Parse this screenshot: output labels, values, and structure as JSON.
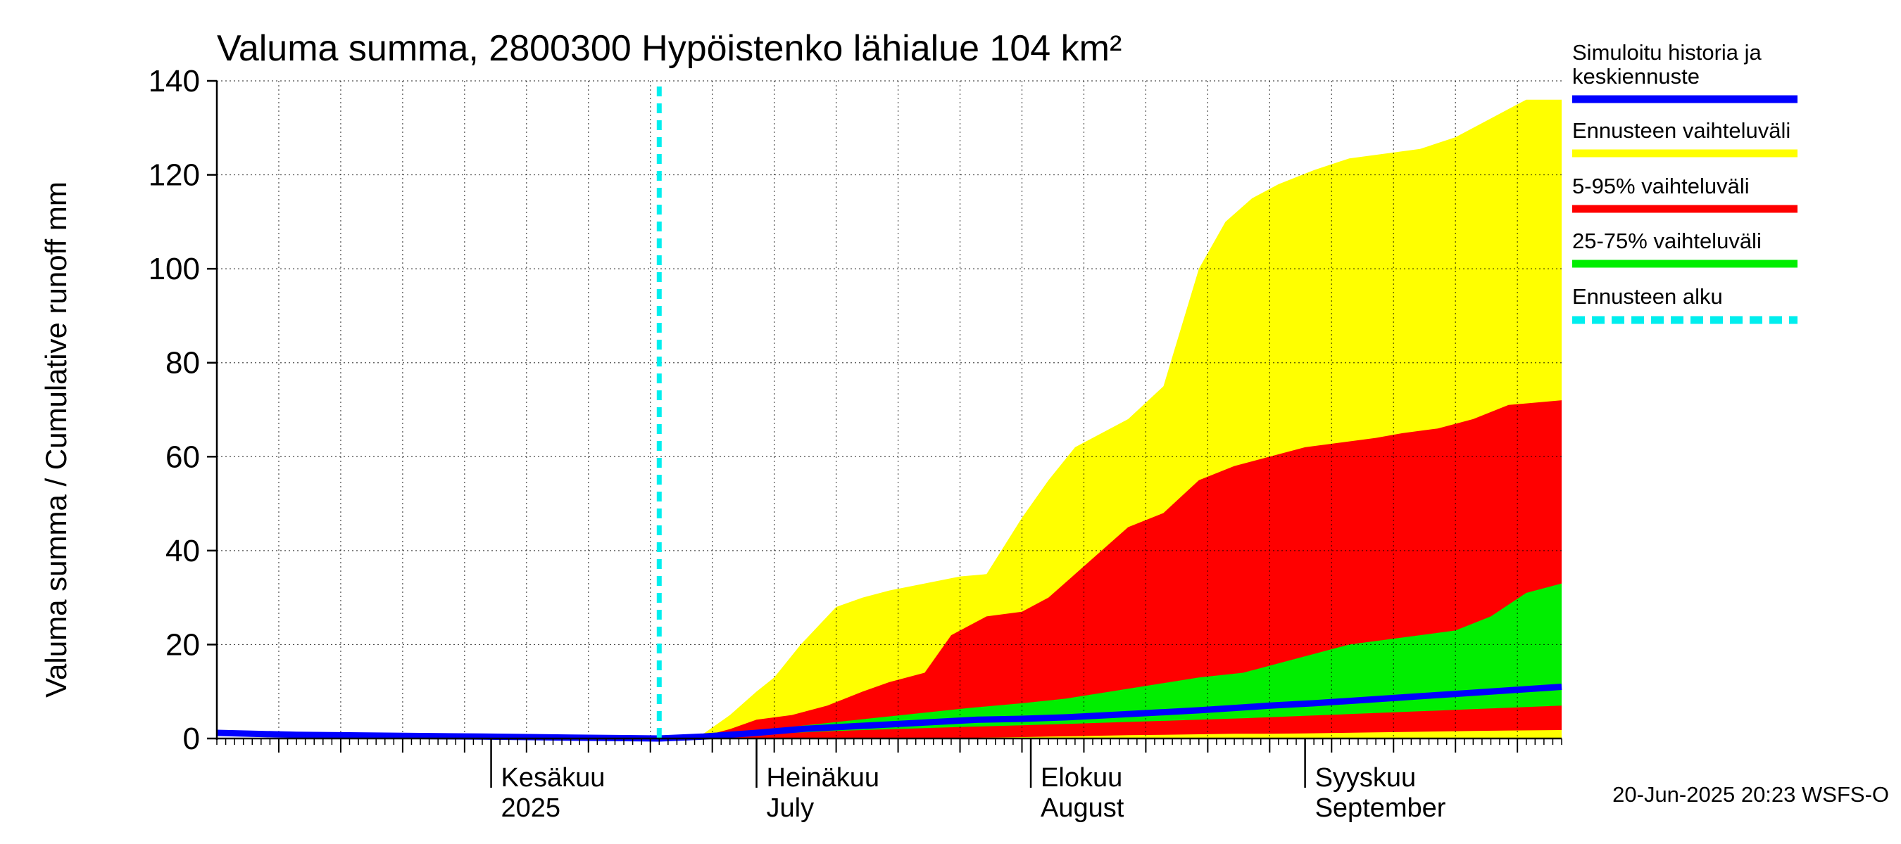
{
  "chart_data": {
    "type": "area",
    "title": "Valuma summa, 2800300 Hypöistenko lähialue 104 km²",
    "ylabel": "Valuma summa / Cumulative runoff    mm",
    "ylim": [
      0,
      140
    ],
    "yticks": [
      "0",
      "20",
      "40",
      "60",
      "80",
      "100",
      "120",
      "140"
    ],
    "xlim": [
      "2025-05-01",
      "2025-09-30"
    ],
    "month_labels": [
      {
        "line1": "Kesäkuu",
        "line2": "2025",
        "date": "2025-06-01"
      },
      {
        "line1": "Heinäkuu",
        "line2": "July",
        "date": "2025-07-01"
      },
      {
        "line1": "Elokuu",
        "line2": "August",
        "date": "2025-08-01"
      },
      {
        "line1": "Syyskuu",
        "line2": "September",
        "date": "2025-09-01"
      }
    ],
    "forecast_start": "2025-06-20",
    "grid": true,
    "legend_position": "right",
    "legend": [
      {
        "label": "Simuloitu historia ja keskiennuste",
        "color": "#0000ff",
        "style": "solid"
      },
      {
        "label": "Ennusteen vaihteluväli",
        "color": "#ffff00",
        "style": "solid"
      },
      {
        "label": "5-95% vaihteluväli",
        "color": "#ff0000",
        "style": "solid"
      },
      {
        "label": "25-75% vaihteluväli",
        "color": "#00ee00",
        "style": "solid"
      },
      {
        "label": "Ennusteen alku",
        "color": "#00eeee",
        "style": "dashed"
      }
    ],
    "bands": [
      {
        "name": "Ennusteen vaihteluväli",
        "color": "#ffff00",
        "x": [
          "2025-06-20",
          "2025-06-25",
          "2025-06-28",
          "2025-07-01",
          "2025-07-03",
          "2025-07-06",
          "2025-07-10",
          "2025-07-13",
          "2025-07-16",
          "2025-07-20",
          "2025-07-24",
          "2025-07-27",
          "2025-07-31",
          "2025-08-03",
          "2025-08-06",
          "2025-08-09",
          "2025-08-12",
          "2025-08-16",
          "2025-08-20",
          "2025-08-23",
          "2025-08-26",
          "2025-08-29",
          "2025-09-02",
          "2025-09-06",
          "2025-09-10",
          "2025-09-14",
          "2025-09-18",
          "2025-09-22",
          "2025-09-26",
          "2025-09-30"
        ],
        "upper": [
          0,
          1,
          5,
          10,
          13,
          20,
          28,
          30,
          31.5,
          33,
          34.5,
          35,
          47,
          55,
          62,
          65,
          68,
          75,
          100,
          110,
          115,
          118,
          121,
          123.5,
          124.5,
          125.5,
          128,
          132,
          136,
          136
        ],
        "lower": [
          0,
          0,
          0,
          0,
          0,
          0,
          0,
          0,
          0,
          0,
          0,
          0,
          0,
          0,
          0,
          0,
          0,
          0,
          0,
          0,
          0,
          0,
          0,
          0,
          0,
          0,
          0,
          0,
          0,
          0
        ]
      },
      {
        "name": "5-95% vaihteluväli",
        "color": "#ff0000",
        "x": [
          "2025-06-20",
          "2025-06-25",
          "2025-06-28",
          "2025-07-01",
          "2025-07-05",
          "2025-07-09",
          "2025-07-13",
          "2025-07-16",
          "2025-07-20",
          "2025-07-23",
          "2025-07-27",
          "2025-07-31",
          "2025-08-03",
          "2025-08-06",
          "2025-08-09",
          "2025-08-12",
          "2025-08-16",
          "2025-08-20",
          "2025-08-24",
          "2025-08-28",
          "2025-09-01",
          "2025-09-05",
          "2025-09-09",
          "2025-09-12",
          "2025-09-16",
          "2025-09-20",
          "2025-09-24",
          "2025-09-30"
        ],
        "upper": [
          0,
          0.5,
          2,
          4,
          5,
          7,
          10,
          12,
          14,
          22,
          26,
          27,
          30,
          35,
          40,
          45,
          48,
          55,
          58,
          60,
          62,
          63,
          64,
          65,
          66,
          68,
          71,
          72
        ],
        "lower": [
          0,
          0,
          0,
          0,
          0,
          0,
          0,
          0,
          0,
          0,
          0.2,
          0.3,
          0.4,
          0.5,
          0.6,
          0.7,
          0.8,
          0.9,
          1,
          1,
          1.1,
          1.2,
          1.3,
          1.4,
          1.5,
          1.6,
          1.7,
          1.8
        ]
      },
      {
        "name": "25-75% vaihteluväli",
        "color": "#00ee00",
        "x": [
          "2025-06-20",
          "2025-06-25",
          "2025-07-01",
          "2025-07-05",
          "2025-07-10",
          "2025-07-15",
          "2025-07-20",
          "2025-07-25",
          "2025-07-31",
          "2025-08-05",
          "2025-08-10",
          "2025-08-15",
          "2025-08-20",
          "2025-08-25",
          "2025-08-29",
          "2025-09-02",
          "2025-09-06",
          "2025-09-10",
          "2025-09-14",
          "2025-09-18",
          "2025-09-22",
          "2025-09-26",
          "2025-09-30"
        ],
        "upper": [
          0,
          0.5,
          1.5,
          2.5,
          3.5,
          4.5,
          5.5,
          6.5,
          7.5,
          8.5,
          10,
          11.5,
          13,
          14,
          16,
          18,
          20,
          21,
          22,
          23,
          26,
          31,
          33
        ],
        "lower": [
          0,
          0.2,
          0.8,
          1.2,
          1.6,
          1.9,
          2.2,
          2.5,
          2.8,
          3.1,
          3.4,
          3.7,
          4,
          4.3,
          4.6,
          4.9,
          5.2,
          5.5,
          5.8,
          6.1,
          6.4,
          6.7,
          7
        ]
      }
    ],
    "series": [
      {
        "name": "Simuloitu historia ja keskiennuste",
        "color": "#0000ff",
        "x": [
          "2025-05-01",
          "2025-05-05",
          "2025-05-10",
          "2025-05-20",
          "2025-05-31",
          "2025-06-10",
          "2025-06-20",
          "2025-06-25",
          "2025-07-01",
          "2025-07-06",
          "2025-07-11",
          "2025-07-16",
          "2025-07-21",
          "2025-07-26",
          "2025-07-31",
          "2025-08-05",
          "2025-08-10",
          "2025-08-15",
          "2025-08-20",
          "2025-08-24",
          "2025-08-28",
          "2025-09-02",
          "2025-09-06",
          "2025-09-10",
          "2025-09-14",
          "2025-09-18",
          "2025-09-22",
          "2025-09-26",
          "2025-09-30"
        ],
        "y": [
          1.2,
          1,
          0.8,
          0.6,
          0.4,
          0.2,
          0,
          0.4,
          1.2,
          2,
          2.5,
          3,
          3.5,
          4,
          4.2,
          4.5,
          5,
          5.5,
          6,
          6.5,
          7,
          7.5,
          8,
          8.5,
          9,
          9.5,
          10,
          10.5,
          11
        ]
      }
    ],
    "footer": "20-Jun-2025 20:23 WSFS-O"
  }
}
